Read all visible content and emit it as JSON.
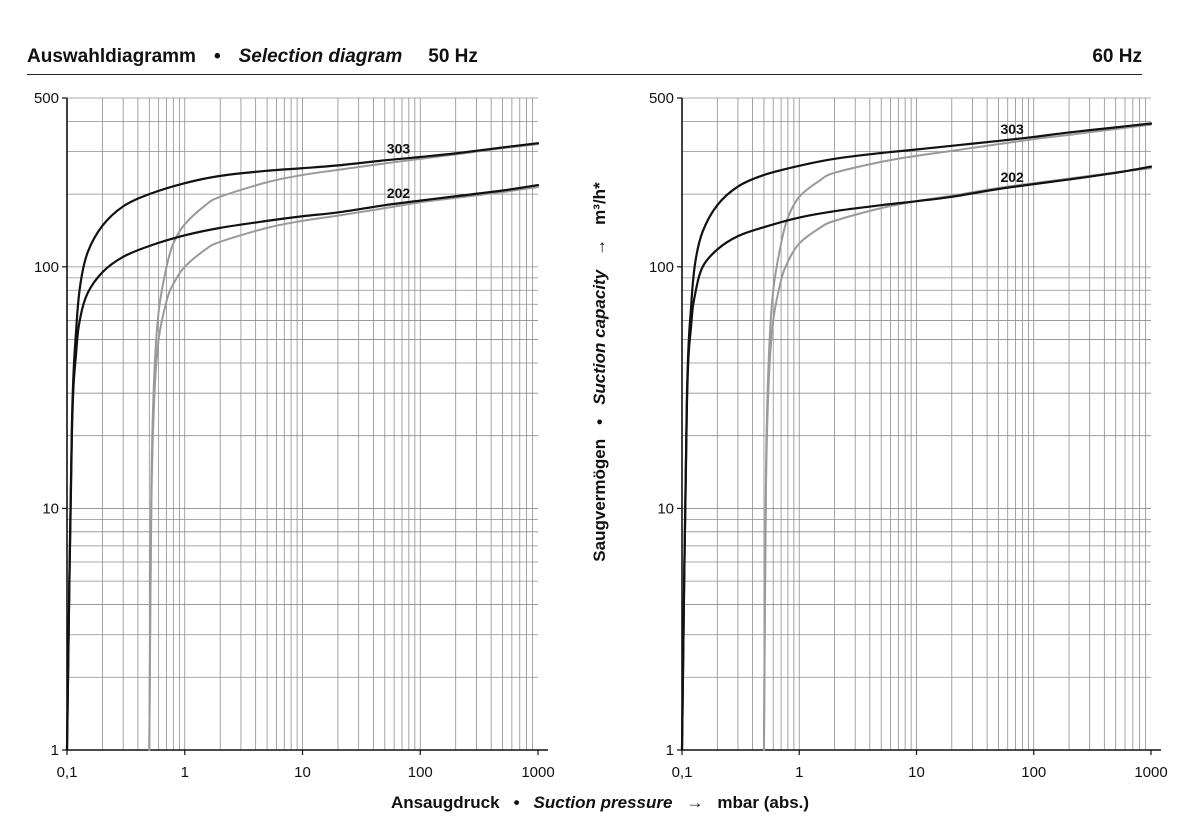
{
  "header": {
    "title_de": "Auswahldiagramm",
    "bullet": "•",
    "title_en": "Selection diagram",
    "freq_left": "50 Hz",
    "freq_right": "60 Hz"
  },
  "axes": {
    "x_title_de": "Ansaugdruck",
    "x_title_en": "Suction pressure",
    "x_arrow": "→",
    "x_unit": "mbar (abs.)",
    "y_title_de": "Saugvermögen",
    "y_title_en": "Suction capacity",
    "y_arrow": "→",
    "y_unit": "m³/h*"
  },
  "chart_data": [
    {
      "type": "line",
      "title": "50 Hz",
      "xscale": "log",
      "yscale": "log",
      "xlim": [
        0.1,
        1000
      ],
      "ylim": [
        1,
        500
      ],
      "xticks": [
        "0,1",
        "1",
        "10",
        "100",
        "1000"
      ],
      "yticks": [
        "1",
        "10",
        "100",
        "500"
      ],
      "grid": true,
      "colors": {
        "black": "#111111",
        "gray": "#9a9a9a"
      },
      "series": [
        {
          "name": "303",
          "color": "black",
          "x": [
            0.1,
            0.11,
            0.12,
            0.13,
            0.15,
            0.2,
            0.3,
            0.5,
            1,
            2,
            5,
            10,
            20,
            50,
            100,
            200,
            500,
            1000
          ],
          "y": [
            1,
            22,
            56,
            85,
            115,
            148,
            178,
            200,
            222,
            238,
            250,
            256,
            263,
            276,
            285,
            295,
            312,
            325
          ]
        },
        {
          "name": "202",
          "color": "black",
          "x": [
            0.1,
            0.11,
            0.12,
            0.13,
            0.15,
            0.2,
            0.3,
            0.5,
            1,
            2,
            5,
            10,
            20,
            50,
            100,
            200,
            500,
            1000
          ],
          "y": [
            1,
            20,
            45,
            62,
            78,
            95,
            110,
            122,
            135,
            145,
            155,
            162,
            168,
            180,
            188,
            196,
            207,
            218
          ]
        },
        {
          "name": "",
          "color": "gray",
          "x": [
            0.5,
            0.52,
            0.55,
            0.6,
            0.7,
            0.8,
            1,
            1.5,
            2,
            5,
            10,
            20,
            50,
            100,
            200,
            500,
            1000
          ],
          "y": [
            1,
            12,
            35,
            65,
            100,
            125,
            150,
            180,
            195,
            224,
            240,
            252,
            268,
            280,
            292,
            310,
            322
          ]
        },
        {
          "name": "",
          "color": "gray",
          "x": [
            0.5,
            0.52,
            0.55,
            0.6,
            0.7,
            0.8,
            1,
            1.5,
            2,
            5,
            10,
            20,
            50,
            100,
            200,
            500,
            1000
          ],
          "y": [
            1,
            10,
            28,
            50,
            72,
            85,
            100,
            118,
            127,
            145,
            155,
            163,
            175,
            185,
            193,
            204,
            214
          ]
        }
      ]
    },
    {
      "type": "line",
      "title": "60 Hz",
      "xscale": "log",
      "yscale": "log",
      "xlim": [
        0.1,
        1000
      ],
      "ylim": [
        1,
        500
      ],
      "xticks": [
        "0,1",
        "1",
        "10",
        "100",
        "1000"
      ],
      "yticks": [
        "1",
        "10",
        "100",
        "500"
      ],
      "grid": true,
      "colors": {
        "black": "#111111",
        "gray": "#9a9a9a"
      },
      "series": [
        {
          "name": "303",
          "color": "black",
          "x": [
            0.1,
            0.11,
            0.12,
            0.13,
            0.15,
            0.2,
            0.3,
            0.5,
            1,
            2,
            5,
            10,
            20,
            50,
            100,
            200,
            500,
            1000
          ],
          "y": [
            1,
            28,
            70,
            105,
            140,
            180,
            215,
            240,
            262,
            280,
            296,
            306,
            317,
            332,
            345,
            360,
            378,
            392
          ]
        },
        {
          "name": "202",
          "color": "black",
          "x": [
            0.1,
            0.11,
            0.12,
            0.13,
            0.15,
            0.2,
            0.3,
            0.5,
            1,
            2,
            5,
            10,
            20,
            50,
            100,
            200,
            500,
            1000
          ],
          "y": [
            1,
            26,
            58,
            78,
            100,
            118,
            134,
            146,
            160,
            170,
            180,
            187,
            195,
            210,
            220,
            230,
            245,
            260
          ]
        },
        {
          "name": "",
          "color": "gray",
          "x": [
            0.5,
            0.52,
            0.55,
            0.6,
            0.7,
            0.8,
            1,
            1.5,
            2,
            5,
            10,
            20,
            50,
            100,
            200,
            500,
            1000
          ],
          "y": [
            1,
            14,
            42,
            80,
            125,
            160,
            195,
            228,
            245,
            272,
            288,
            302,
            322,
            338,
            352,
            372,
            388
          ]
        },
        {
          "name": "",
          "color": "gray",
          "x": [
            0.5,
            0.52,
            0.55,
            0.6,
            0.7,
            0.8,
            1,
            1.5,
            2,
            5,
            10,
            20,
            50,
            100,
            200,
            500,
            1000
          ],
          "y": [
            1,
            12,
            34,
            60,
            88,
            105,
            125,
            145,
            155,
            175,
            187,
            197,
            212,
            222,
            232,
            246,
            256
          ]
        }
      ]
    }
  ]
}
